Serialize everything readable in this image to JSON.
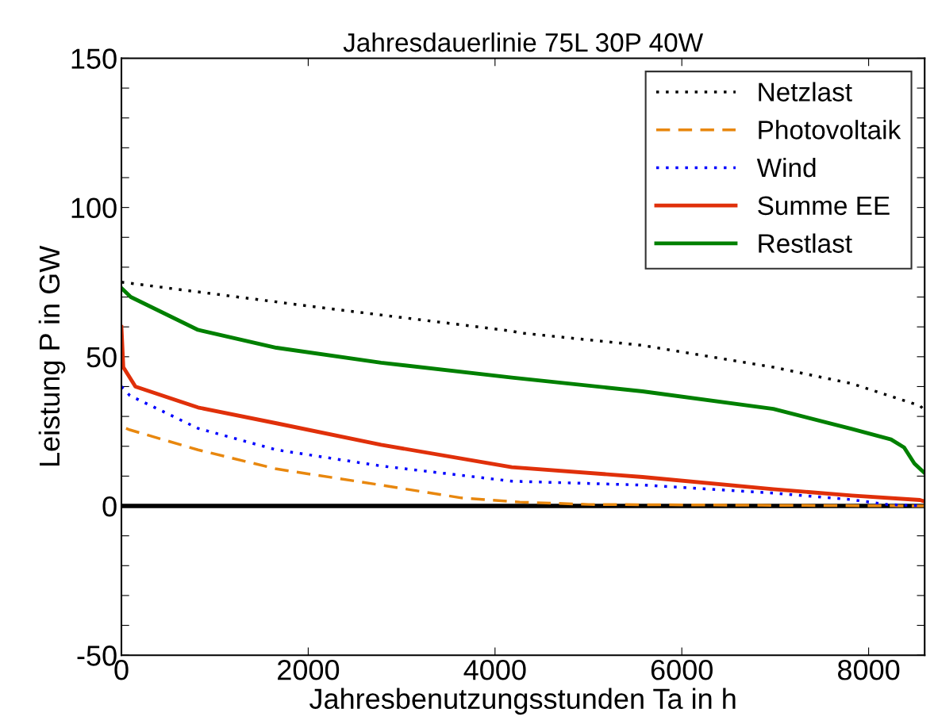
{
  "chart_data": {
    "type": "line",
    "title": "Jahresdauerlinie 75L 30P 40W",
    "xlabel": "Jahresbenutzungsstunden Ta in h",
    "ylabel": "Leistung P in GW",
    "xlim": [
      0,
      8600
    ],
    "xticks": [
      0,
      2000,
      4000,
      6000,
      8000
    ],
    "ylim": [
      -50,
      150
    ],
    "yticks": [
      -50,
      {
        "value": -40,
        "label": null
      },
      {
        "value": -30,
        "label": null
      },
      {
        "value": -20,
        "label": null
      },
      {
        "value": -10,
        "label": null
      },
      0,
      {
        "value": 10,
        "label": null
      },
      {
        "value": 20,
        "label": null
      },
      {
        "value": 30,
        "label": null
      },
      {
        "value": 40,
        "label": null
      },
      50,
      {
        "value": 60,
        "label": null
      },
      {
        "value": 70,
        "label": null
      },
      {
        "value": 80,
        "label": null
      },
      {
        "value": 90,
        "label": null
      },
      100,
      {
        "value": 110,
        "label": null
      },
      {
        "value": 120,
        "label": null
      },
      {
        "value": 130,
        "label": null
      },
      {
        "value": 140,
        "label": null
      },
      150
    ],
    "grid": false,
    "legend": "top right",
    "ref_lines": [
      {
        "axis": "y",
        "value": 0,
        "color": "#000000"
      }
    ],
    "series": [
      {
        "name": "Netzlast",
        "color": "#000000",
        "line_style": "dotted",
        "x": [
          0,
          2000,
          4180,
          4265,
          5580,
          6980,
          7820,
          8550,
          8600
        ],
        "values": [
          75,
          67,
          58.6,
          58,
          53.8,
          46.5,
          41,
          33.6,
          32
        ]
      },
      {
        "name": "Photovoltaik",
        "color": "#e8870e",
        "line_style": "dashed",
        "x": [
          50,
          90,
          820,
          1660,
          2780,
          3640,
          4265,
          5000,
          8600
        ],
        "values": [
          26,
          25.5,
          18.8,
          12.4,
          7,
          2.7,
          1.3,
          0.5,
          0
        ]
      },
      {
        "name": "Wind",
        "color": "#0000ff",
        "line_style": "dotted",
        "x": [
          0,
          90,
          820,
          1660,
          2780,
          4180,
          5580,
          6980,
          7820,
          8200,
          8600
        ],
        "values": [
          40,
          37,
          26,
          18.8,
          13.4,
          8.3,
          7,
          4.3,
          2.1,
          0.5,
          0
        ]
      },
      {
        "name": "Summe EE",
        "color": "#e0300a",
        "line_style": "solid",
        "x": [
          0,
          20,
          150,
          820,
          1660,
          2780,
          4180,
          5580,
          6980,
          7820,
          8550,
          8600
        ],
        "values": [
          60,
          46.5,
          40,
          33,
          27.7,
          20.5,
          13,
          9.7,
          5.6,
          3.5,
          2,
          1.5
        ]
      },
      {
        "name": "Restlast",
        "color": "#008000",
        "line_style": "solid",
        "x": [
          0,
          100,
          820,
          1660,
          2780,
          4180,
          5580,
          6980,
          7820,
          8240,
          8380,
          8490,
          8600
        ],
        "values": [
          73,
          70,
          59,
          53,
          48,
          43,
          38.4,
          32.5,
          25.8,
          22.3,
          19.6,
          14.2,
          11
        ]
      }
    ]
  }
}
